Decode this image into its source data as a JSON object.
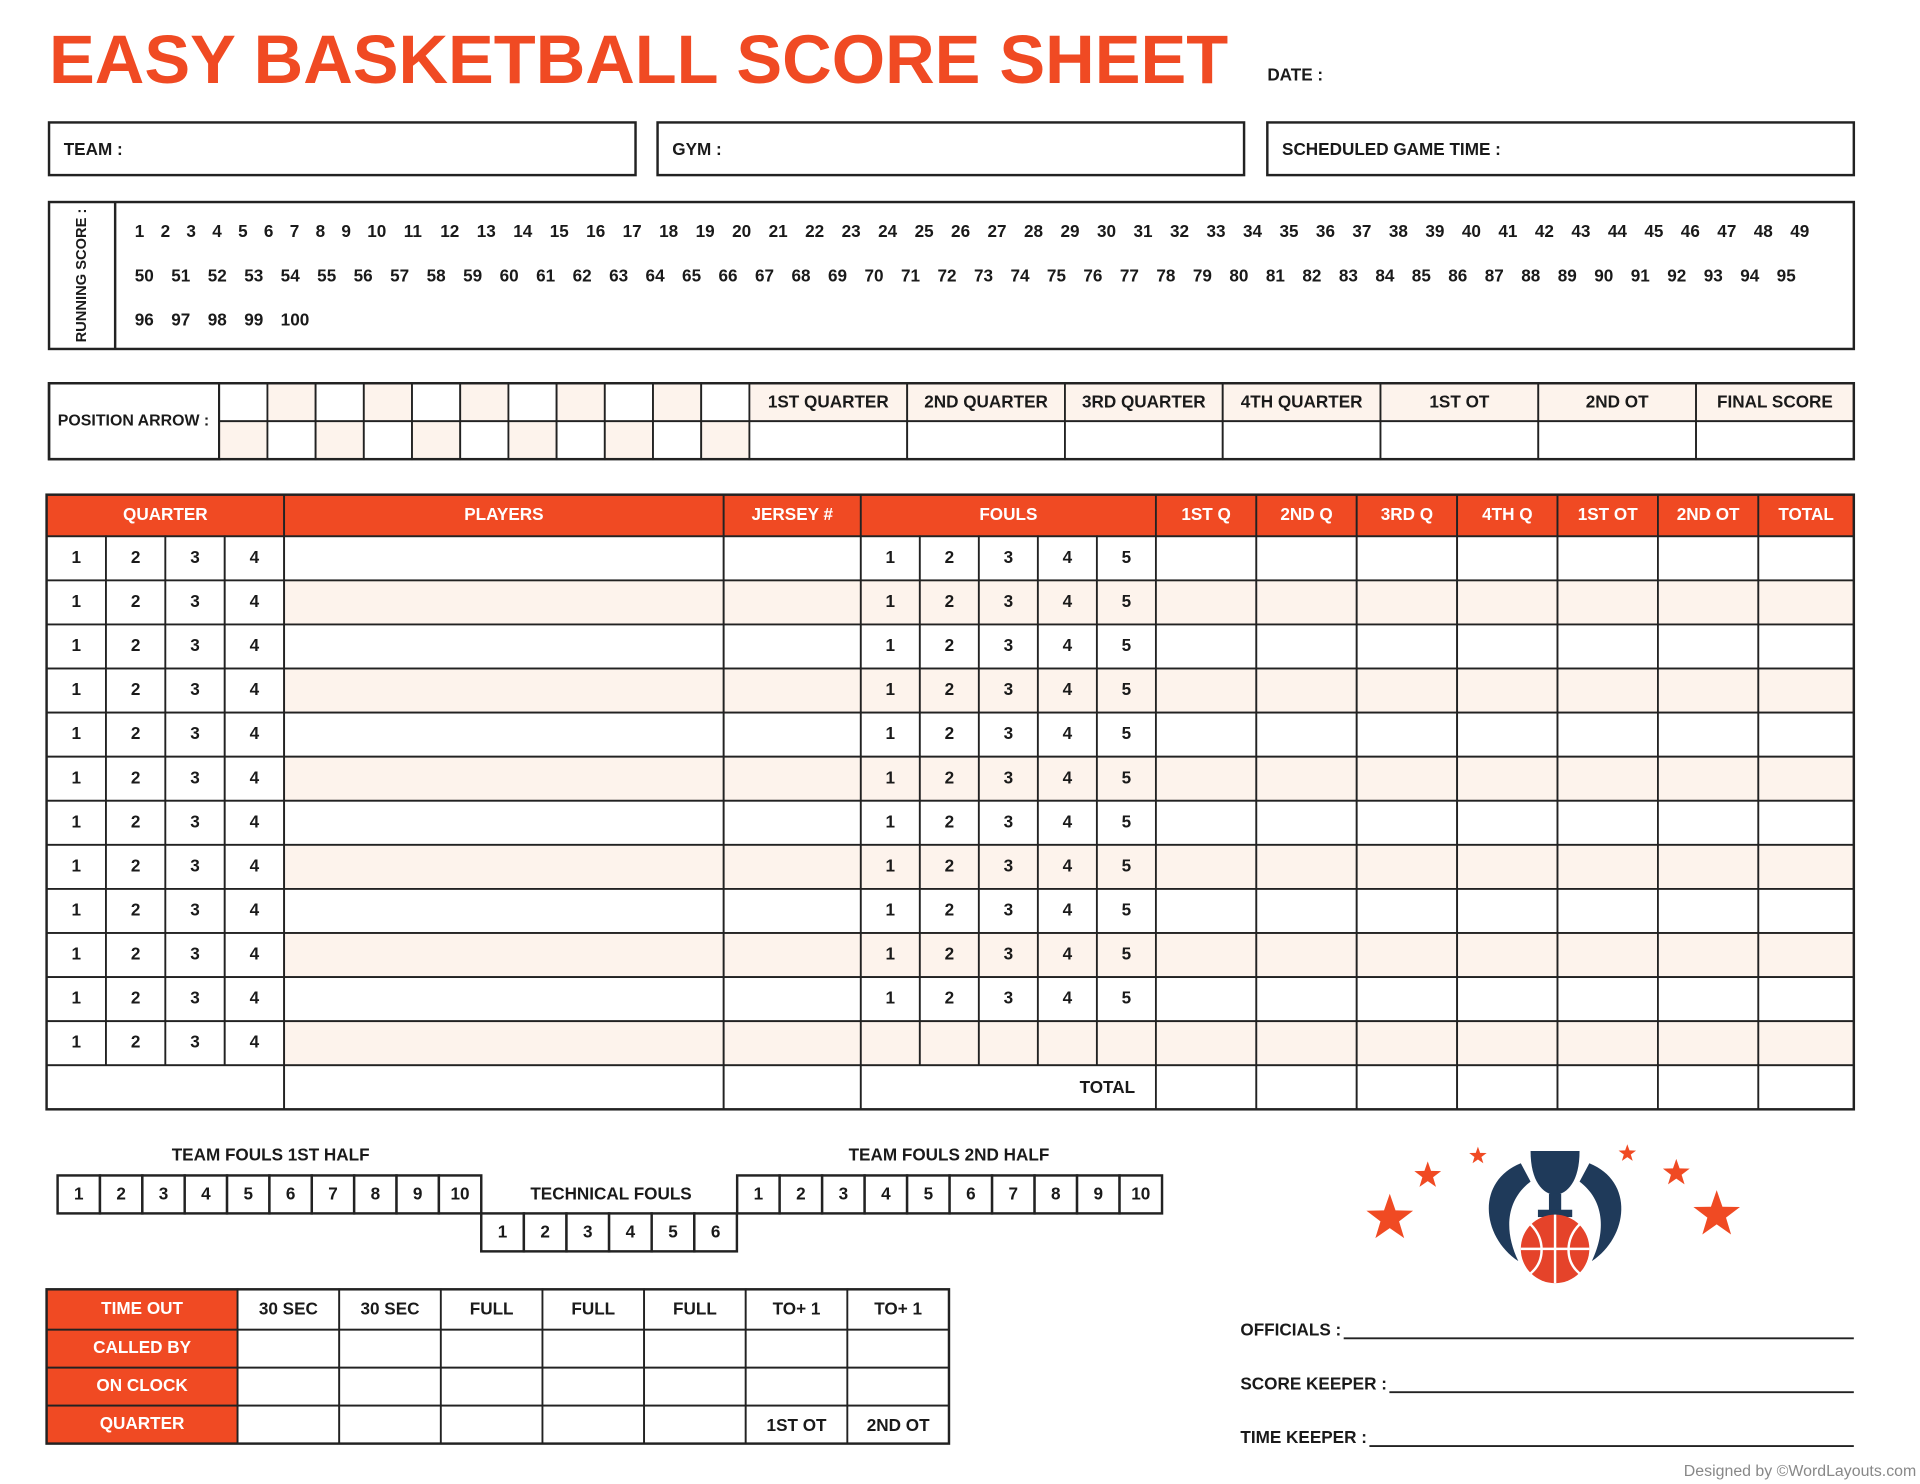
{
  "header": {
    "title": "EASY BASKETBALL SCORE SHEET",
    "date_label": "DATE :"
  },
  "info_fields": [
    "TEAM :",
    "GYM :",
    "SCHEDULED GAME TIME :"
  ],
  "running_score": {
    "label": "RUNNING SCORE :",
    "numbers": [
      1,
      2,
      3,
      4,
      5,
      6,
      7,
      8,
      9,
      10,
      11,
      12,
      13,
      14,
      15,
      16,
      17,
      18,
      19,
      20,
      21,
      22,
      23,
      24,
      25,
      26,
      27,
      28,
      29,
      30,
      31,
      32,
      33,
      34,
      35,
      36,
      37,
      38,
      39,
      40,
      41,
      42,
      43,
      44,
      45,
      46,
      47,
      48,
      49,
      50,
      51,
      52,
      53,
      54,
      55,
      56,
      57,
      58,
      59,
      60,
      61,
      62,
      63,
      64,
      65,
      66,
      67,
      68,
      69,
      70,
      71,
      72,
      73,
      74,
      75,
      76,
      77,
      78,
      79,
      80,
      81,
      82,
      83,
      84,
      85,
      86,
      87,
      88,
      89,
      90,
      91,
      92,
      93,
      94,
      95,
      96,
      97,
      98,
      99,
      100
    ]
  },
  "position_arrow": {
    "label": "POSITION ARROW :",
    "periods": [
      "1ST QUARTER",
      "2ND QUARTER",
      "3RD QUARTER",
      "4TH QUARTER",
      "1ST OT",
      "2ND OT",
      "FINAL SCORE"
    ]
  },
  "players_table": {
    "headers": [
      "QUARTER",
      "PLAYERS",
      "JERSEY #",
      "FOULS",
      "1ST Q",
      "2ND Q",
      "3RD Q",
      "4TH Q",
      "1ST OT",
      "2ND OT",
      "TOTAL"
    ],
    "rows": [
      {
        "quarters": [
          1,
          2,
          3,
          4
        ],
        "fouls": [
          1,
          2,
          3,
          4,
          5
        ]
      },
      {
        "quarters": [
          1,
          2,
          3,
          4
        ],
        "fouls": [
          1,
          2,
          3,
          4,
          5
        ]
      },
      {
        "quarters": [
          1,
          2,
          3,
          4
        ],
        "fouls": [
          1,
          2,
          3,
          4,
          5
        ]
      },
      {
        "quarters": [
          1,
          2,
          3,
          4
        ],
        "fouls": [
          1,
          2,
          3,
          4,
          5
        ]
      },
      {
        "quarters": [
          1,
          2,
          3,
          4
        ],
        "fouls": [
          1,
          2,
          3,
          4,
          5
        ]
      },
      {
        "quarters": [
          1,
          2,
          3,
          4
        ],
        "fouls": [
          1,
          2,
          3,
          4,
          5
        ]
      },
      {
        "quarters": [
          1,
          2,
          3,
          4
        ],
        "fouls": [
          1,
          2,
          3,
          4,
          5
        ]
      },
      {
        "quarters": [
          1,
          2,
          3,
          4
        ],
        "fouls": [
          1,
          2,
          3,
          4,
          5
        ]
      },
      {
        "quarters": [
          1,
          2,
          3,
          4
        ],
        "fouls": [
          1,
          2,
          3,
          4,
          5
        ]
      },
      {
        "quarters": [
          1,
          2,
          3,
          4
        ],
        "fouls": [
          1,
          2,
          3,
          4,
          5
        ]
      },
      {
        "quarters": [
          1,
          2,
          3,
          4
        ],
        "fouls": [
          1,
          2,
          3,
          4,
          5
        ]
      },
      {
        "quarters": [
          1,
          2,
          3,
          4
        ]
      }
    ],
    "total_label": "TOTAL"
  },
  "team_fouls_1st_half": {
    "label": "TEAM FOULS 1ST HALF",
    "boxes": [
      1,
      2,
      3,
      4,
      5,
      6,
      7,
      8,
      9,
      10
    ]
  },
  "technical_fouls": {
    "label": "TECHNICAL FOULS",
    "boxes": [
      1,
      2,
      3,
      4,
      5,
      6
    ]
  },
  "team_fouls_2nd_half": {
    "label": "TEAM FOULS 2ND HALF",
    "boxes": [
      1,
      2,
      3,
      4,
      5,
      6,
      7,
      8,
      9,
      10
    ]
  },
  "timeout_table": {
    "row_labels": [
      "TIME OUT",
      "CALLED BY",
      "ON CLOCK",
      "QUARTER"
    ],
    "columns": [
      "30 SEC",
      "30 SEC",
      "FULL",
      "FULL",
      "FULL",
      "TO+ 1",
      "TO+ 1"
    ],
    "quarter_ot": [
      "1ST OT",
      "2ND OT"
    ]
  },
  "signatures": [
    "OFFICIALS :",
    "SCORE KEEPER :",
    "TIME KEEPER :"
  ],
  "footer": "Designed by ©WordLayouts.com"
}
